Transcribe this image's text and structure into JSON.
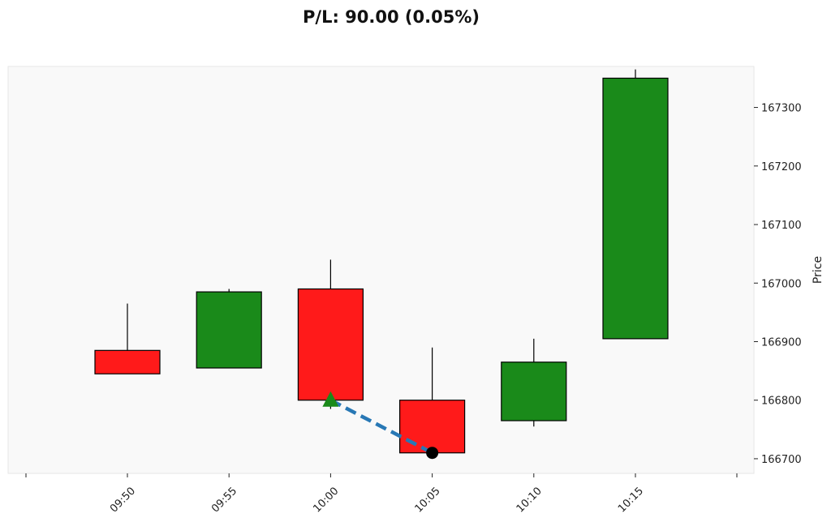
{
  "chart_data": {
    "type": "candlestick",
    "title": "P/L: 90.00 (0.05%)",
    "xlabel": "",
    "ylabel": "Price",
    "ylim": [
      166675,
      167370
    ],
    "x_ticks": [
      "09:50",
      "09:55",
      "10:00",
      "10:05",
      "10:10",
      "10:15"
    ],
    "grid": false,
    "y_axis_side": "right",
    "candles": [
      {
        "time": "09:50",
        "open": 166885,
        "high": 166965,
        "low": 166845,
        "close": 166845
      },
      {
        "time": "09:55",
        "open": 166855,
        "high": 166990,
        "low": 166855,
        "close": 166985
      },
      {
        "time": "10:00",
        "open": 166990,
        "high": 167040,
        "low": 166785,
        "close": 166800
      },
      {
        "time": "10:05",
        "open": 166800,
        "high": 166890,
        "low": 166710,
        "close": 166710
      },
      {
        "time": "10:10",
        "open": 166765,
        "high": 166905,
        "low": 166755,
        "close": 166865
      },
      {
        "time": "10:15",
        "open": 166905,
        "high": 167365,
        "low": 166905,
        "close": 167350
      }
    ],
    "y_ticks": [
      166700,
      166800,
      166900,
      167000,
      167100,
      167200,
      167300
    ],
    "trade": {
      "entry": {
        "time": "10:00",
        "price": 166800,
        "marker": "triangle-up",
        "color": "#1a8a1a"
      },
      "exit": {
        "time": "10:05",
        "price": 166710,
        "marker": "circle",
        "color": "#000000"
      },
      "line_color": "#2878b5",
      "line_style": "dashed"
    },
    "colors": {
      "up": "#1a8a1a",
      "down": "#ff1a1a",
      "background": "#f9f9f9",
      "frame": "#e6e6e6"
    }
  }
}
